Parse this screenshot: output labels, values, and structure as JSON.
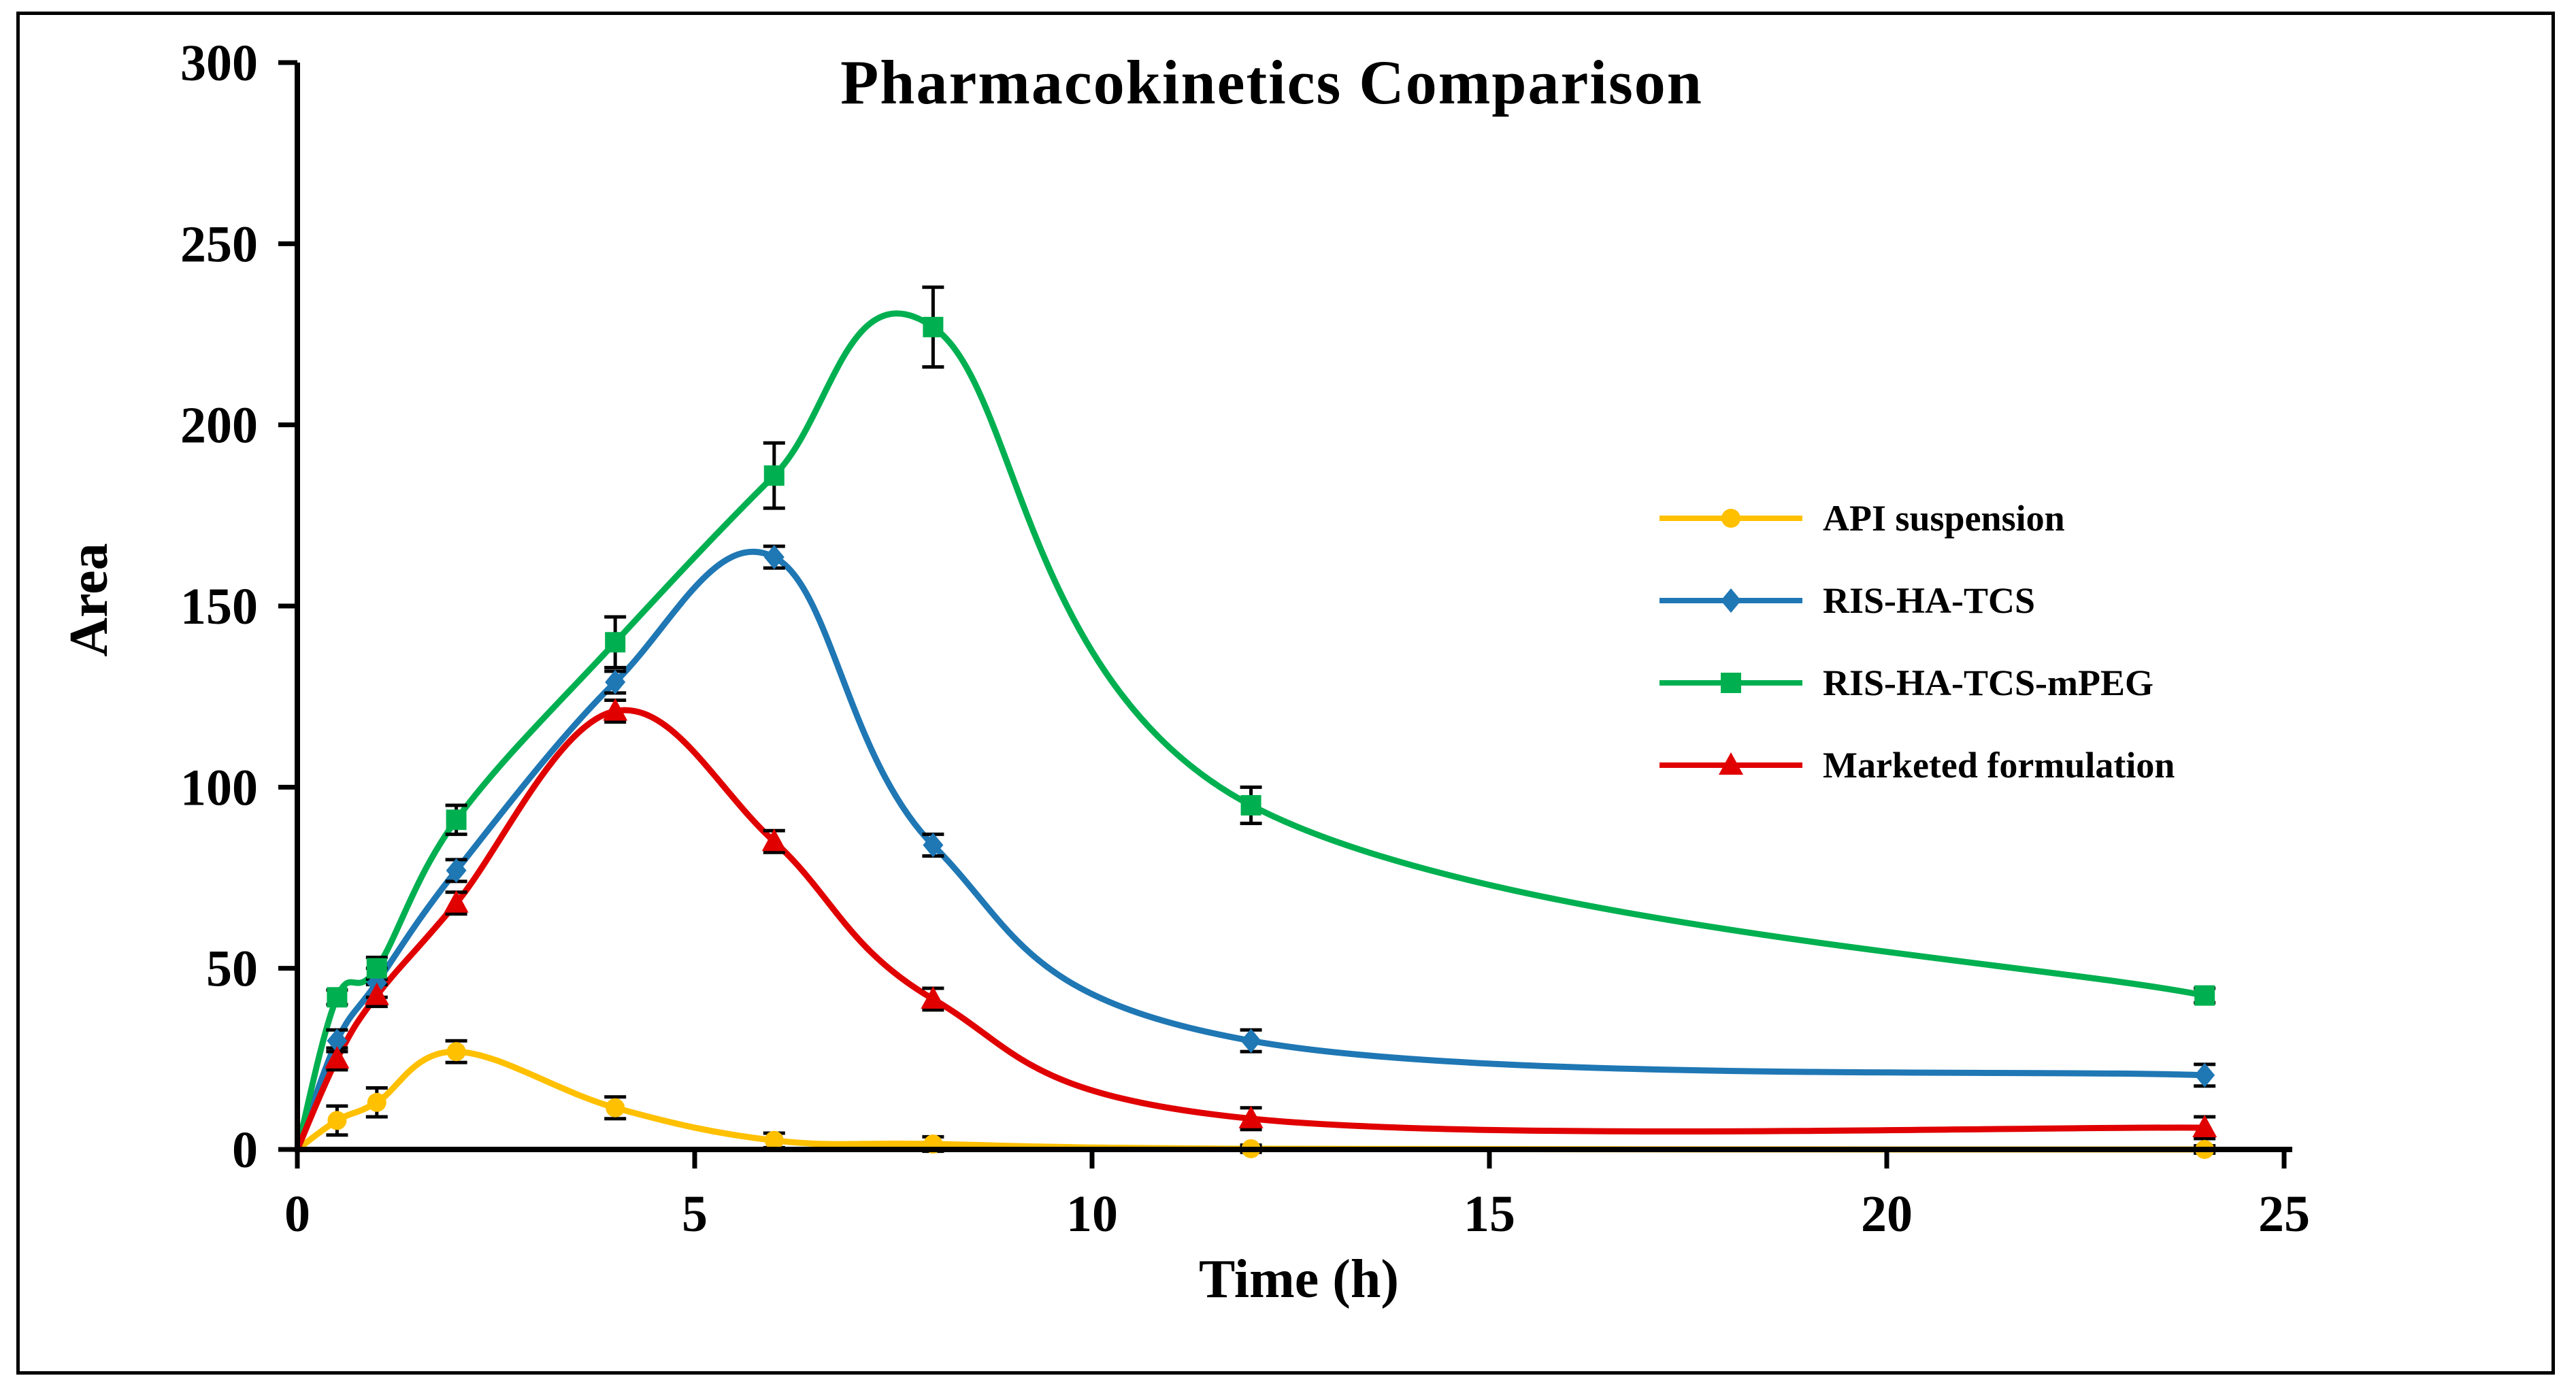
{
  "chart_data": {
    "type": "line",
    "title": "Pharmacokinetics Comparison",
    "xlabel": "Time (h)",
    "ylabel": "Area",
    "xlim": [
      0,
      25
    ],
    "ylim": [
      0,
      300
    ],
    "xticks": [
      "0",
      "5",
      "10",
      "15",
      "20",
      "25"
    ],
    "yticks": [
      "0",
      "50",
      "100",
      "150",
      "200",
      "250",
      "300"
    ],
    "xtick_values": [
      0,
      5,
      10,
      15,
      20,
      25
    ],
    "ytick_values": [
      0,
      50,
      100,
      150,
      200,
      250,
      300
    ],
    "grid": false,
    "legend_position": "right",
    "series": [
      {
        "name": "API suspension",
        "color": "#FFC000",
        "marker": "circle",
        "x": [
          0,
          0.5,
          1,
          2,
          4,
          6,
          8,
          12,
          24
        ],
        "y": [
          0,
          8,
          13,
          27,
          11.5,
          2.5,
          1.5,
          0.2,
          0
        ],
        "err": [
          0,
          4,
          4,
          3,
          3,
          2,
          2,
          1,
          1
        ]
      },
      {
        "name": "RIS-HA-TCS",
        "color": "#1F77B4",
        "marker": "diamond",
        "x": [
          0,
          0.5,
          1,
          2,
          4,
          6,
          8,
          12,
          24
        ],
        "y": [
          0,
          30,
          46,
          77,
          129,
          163.5,
          84,
          30,
          20.5
        ],
        "err": [
          0,
          3,
          4,
          3,
          3,
          3,
          3,
          3,
          3
        ]
      },
      {
        "name": "RIS-HA-TCS-mPEG",
        "color": "#00B050",
        "marker": "square",
        "x": [
          0,
          0.5,
          1,
          2,
          4,
          6,
          8,
          12,
          24
        ],
        "y": [
          0,
          42,
          50,
          91,
          140,
          186,
          227,
          95,
          42.5
        ],
        "err": [
          0,
          2,
          3,
          4,
          7,
          9,
          11,
          5,
          2
        ]
      },
      {
        "name": "Marketed formulation",
        "color": "#E00000",
        "marker": "triangle",
        "x": [
          0,
          0.5,
          1,
          2,
          4,
          6,
          8,
          12,
          24
        ],
        "y": [
          0,
          25,
          42.5,
          68,
          121,
          85,
          41.5,
          8.5,
          6
        ],
        "err": [
          0,
          3,
          3,
          3,
          3,
          3,
          3,
          3,
          3
        ]
      }
    ]
  }
}
